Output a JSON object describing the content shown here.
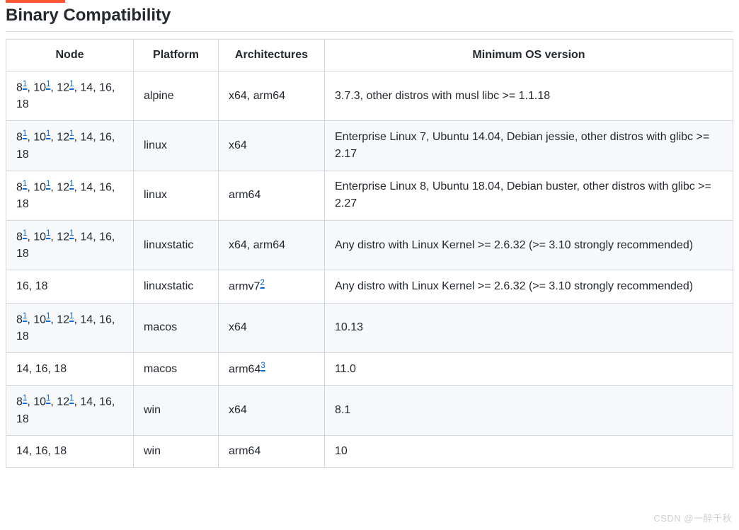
{
  "accent_color": "#fc5531",
  "heading": "Binary Compatibility",
  "link_color": "#0969da",
  "columns": [
    "Node",
    "Platform",
    "Architectures",
    "Minimum OS version"
  ],
  "node_pattern_A": {
    "parts": [
      "8",
      "1",
      ", 10",
      "1",
      ", 12",
      "1",
      ", 14, 16, 18"
    ]
  },
  "rows": [
    {
      "node_kind": "A",
      "platform": "alpine",
      "arch": {
        "plain": "x64, arm64"
      },
      "min": "3.7.3, other distros with musl libc >= 1.1.18"
    },
    {
      "node_kind": "A",
      "platform": "linux",
      "arch": {
        "plain": "x64"
      },
      "min": "Enterprise Linux 7, Ubuntu 14.04, Debian jessie, other distros with glibc >= 2.17"
    },
    {
      "node_kind": "A",
      "platform": "linux",
      "arch": {
        "plain": "arm64"
      },
      "min": "Enterprise Linux 8, Ubuntu 18.04, Debian buster, other distros with glibc >= 2.27"
    },
    {
      "node_kind": "A",
      "platform": "linuxstatic",
      "arch": {
        "plain": "x64, arm64"
      },
      "min": "Any distro with Linux Kernel >= 2.6.32 (>= 3.10 strongly recommended)"
    },
    {
      "node_kind": "plain",
      "node_plain": "16, 18",
      "platform": "linuxstatic",
      "arch": {
        "base": "armv7",
        "fn": "2"
      },
      "min": "Any distro with Linux Kernel >= 2.6.32 (>= 3.10 strongly recommended)"
    },
    {
      "node_kind": "A",
      "platform": "macos",
      "arch": {
        "plain": "x64"
      },
      "min": "10.13"
    },
    {
      "node_kind": "plain",
      "node_plain": "14, 16, 18",
      "platform": "macos",
      "arch": {
        "base": "arm64",
        "fn": "3"
      },
      "min": "11.0"
    },
    {
      "node_kind": "A",
      "platform": "win",
      "arch": {
        "plain": "x64"
      },
      "min": "8.1"
    },
    {
      "node_kind": "plain",
      "node_plain": "14, 16, 18",
      "platform": "win",
      "arch": {
        "plain": "arm64"
      },
      "min": "10"
    }
  ],
  "watermark": "CSDN @一醉千秋"
}
